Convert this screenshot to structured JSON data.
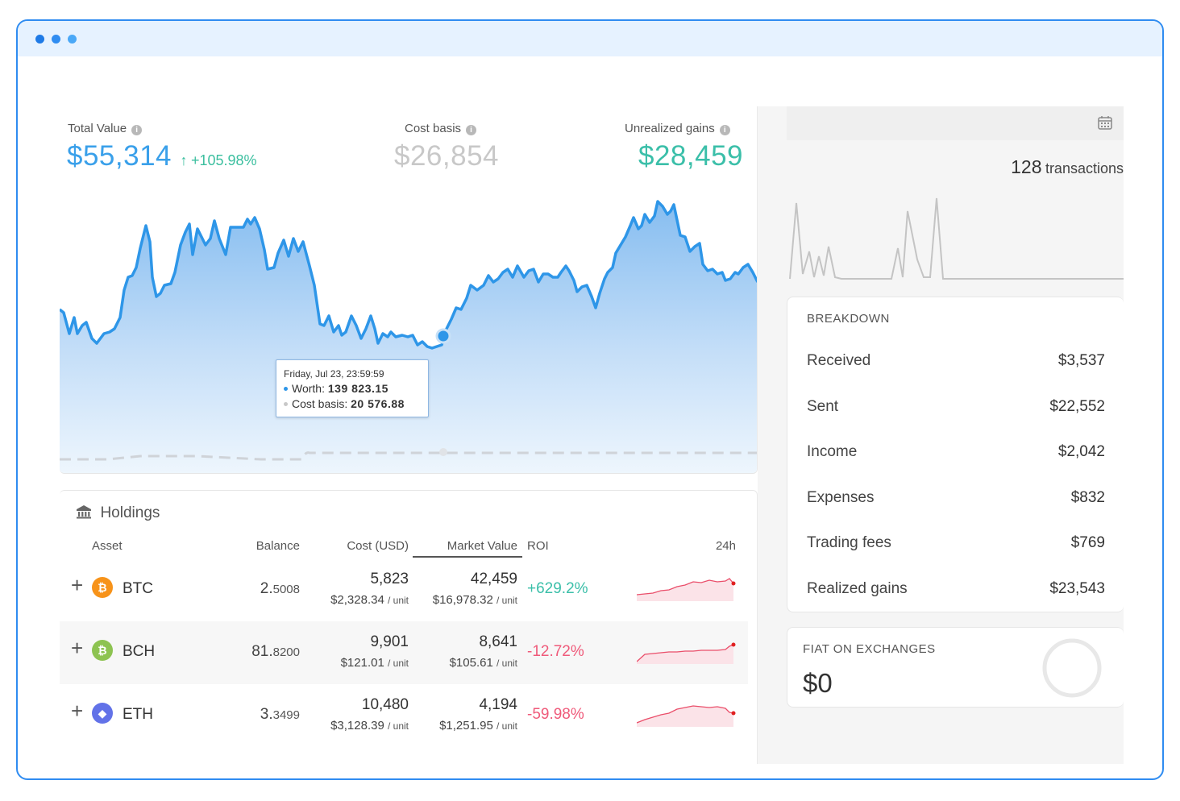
{
  "window": {
    "dot_colors": [
      "#1e7ae6",
      "#2f8cf1",
      "#4aa8f7"
    ]
  },
  "stats": {
    "total_value_label": "Total Value",
    "total_value": "$55,314",
    "total_change": "+105.98%",
    "cost_basis_label": "Cost basis",
    "cost_basis": "$26,854",
    "unrealized_label": "Unrealized gains",
    "unrealized": "$28,459",
    "colors": {
      "total": "#3aa0ea",
      "cost": "#c8c8c8",
      "unrealized": "#3bbfa9"
    }
  },
  "tooltip": {
    "date": "Friday, Jul 23, 23:59:59",
    "worth_label": "Worth:",
    "worth_value": "139 823.15",
    "cost_label": "Cost basis:",
    "cost_value": "20 576.88"
  },
  "holdings": {
    "title": "Holdings",
    "columns": {
      "asset": "Asset",
      "balance": "Balance",
      "cost": "Cost (USD)",
      "market": "Market Value",
      "roi": "ROI",
      "h24": "24h"
    },
    "rows": [
      {
        "symbol": "BTC",
        "coin_glyph": "₿",
        "coin_color": "#f7931a",
        "bal_int": "2.",
        "bal_dec": "5008",
        "cost": "5,823",
        "cost_unit": "$2,328.34",
        "market": "42,459",
        "market_unit": "$16,978.32",
        "unit_label": "/ unit",
        "roi": "+629.2%",
        "roi_color": "#3bbfa9"
      },
      {
        "symbol": "BCH",
        "coin_glyph": "₿",
        "coin_color": "#8dc351",
        "bal_int": "81.",
        "bal_dec": "8200",
        "cost": "9,901",
        "cost_unit": "$121.01",
        "market": "8,641",
        "market_unit": "$105.61",
        "unit_label": "/ unit",
        "roi": "-12.72%",
        "roi_color": "#ef5a7a"
      },
      {
        "symbol": "ETH",
        "coin_glyph": "◆",
        "coin_color": "#6272e8",
        "bal_int": "3.",
        "bal_dec": "3499",
        "cost": "10,480",
        "cost_unit": "$3,128.39",
        "market": "4,194",
        "market_unit": "$1,251.95",
        "unit_label": "/ unit",
        "roi": "-59.98%",
        "roi_color": "#ef5a7a"
      }
    ]
  },
  "transactions": {
    "count": "128",
    "label": "transactions"
  },
  "breakdown": {
    "title": "BREAKDOWN",
    "items": [
      {
        "label": "Received",
        "value": "$3,537"
      },
      {
        "label": "Sent",
        "value": "$22,552"
      },
      {
        "label": "Income",
        "value": "$2,042"
      },
      {
        "label": "Expenses",
        "value": "$832"
      },
      {
        "label": "Trading fees",
        "value": "$769"
      },
      {
        "label": "Realized gains",
        "value": "$23,543"
      }
    ]
  },
  "fiat": {
    "title": "FIAT ON EXCHANGES",
    "value": "$0"
  }
}
